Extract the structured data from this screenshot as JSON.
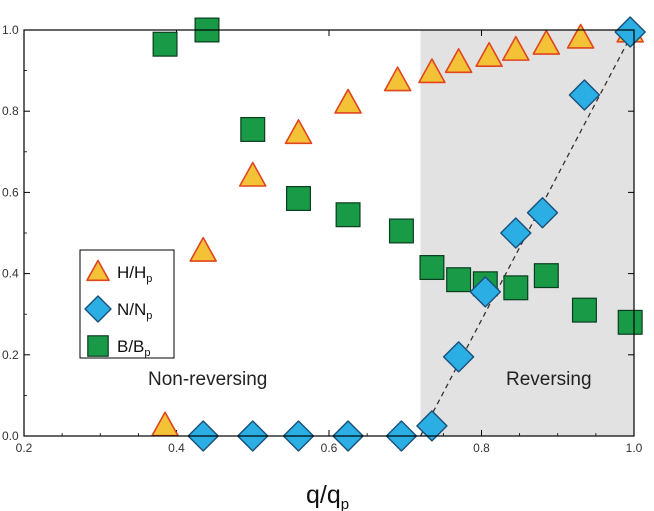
{
  "chart_data": {
    "type": "scatter",
    "xlabel": {
      "main": "q/q",
      "sub": "p"
    },
    "xlim": [
      0.2,
      1.0
    ],
    "ylim": [
      0.0,
      1.0
    ],
    "xticks": [
      "0.2",
      "0.4",
      "0.6",
      "0.8",
      "1.0"
    ],
    "yticks": [
      "0.0",
      "0.2",
      "0.4",
      "0.6",
      "0.8",
      "1.0"
    ],
    "shaded_region": {
      "x_start": 0.72,
      "x_end": 1.0,
      "color": "#e2e2e2"
    },
    "region_labels": [
      "Non-reversing",
      "Reversing"
    ],
    "trend_line": {
      "style": "dashed",
      "points": [
        [
          0.72,
          0.0
        ],
        [
          1.0,
          1.0
        ]
      ]
    },
    "legend": {
      "placement": "upper-left"
    },
    "series": [
      {
        "name": "H/H",
        "name_sub": "p",
        "marker": "triangle",
        "color": "#f4c237",
        "edge": "#e0451f",
        "points": [
          [
            0.385,
            0.025
          ],
          [
            0.435,
            0.455
          ],
          [
            0.5,
            0.64
          ],
          [
            0.56,
            0.745
          ],
          [
            0.625,
            0.82
          ],
          [
            0.69,
            0.875
          ],
          [
            0.735,
            0.895
          ],
          [
            0.77,
            0.92
          ],
          [
            0.81,
            0.935
          ],
          [
            0.845,
            0.95
          ],
          [
            0.885,
            0.965
          ],
          [
            0.93,
            0.98
          ],
          [
            0.995,
            0.995
          ]
        ]
      },
      {
        "name": "N/N",
        "name_sub": "p",
        "marker": "diamond",
        "color": "#2aaee3",
        "edge": "#1a4f7a",
        "points": [
          [
            0.435,
            0.0
          ],
          [
            0.5,
            0.0
          ],
          [
            0.56,
            0.0
          ],
          [
            0.625,
            0.0
          ],
          [
            0.695,
            0.0
          ],
          [
            0.735,
            0.025
          ],
          [
            0.77,
            0.195
          ],
          [
            0.805,
            0.355
          ],
          [
            0.845,
            0.5
          ],
          [
            0.88,
            0.55
          ],
          [
            0.935,
            0.84
          ],
          [
            0.995,
            0.995
          ]
        ]
      },
      {
        "name": "B/B",
        "name_sub": "p",
        "marker": "square",
        "color": "#189a47",
        "edge": "#0b3d1f",
        "points": [
          [
            0.385,
            0.965
          ],
          [
            0.44,
            1.0
          ],
          [
            0.5,
            0.755
          ],
          [
            0.56,
            0.585
          ],
          [
            0.625,
            0.545
          ],
          [
            0.695,
            0.505
          ],
          [
            0.735,
            0.415
          ],
          [
            0.77,
            0.385
          ],
          [
            0.805,
            0.375
          ],
          [
            0.845,
            0.365
          ],
          [
            0.885,
            0.395
          ],
          [
            0.935,
            0.31
          ],
          [
            0.995,
            0.28
          ]
        ]
      }
    ]
  }
}
